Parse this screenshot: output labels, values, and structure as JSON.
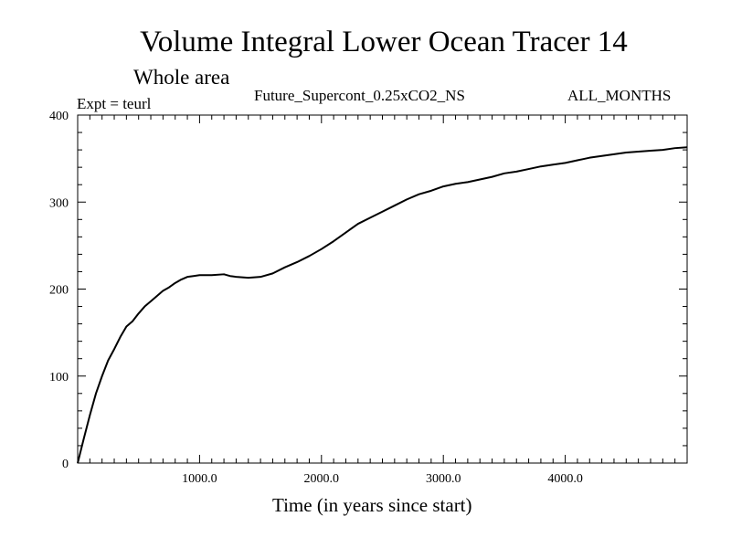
{
  "chart_data": {
    "type": "line",
    "title": "Volume Integral Lower Ocean Tracer 14",
    "subtitle": "Whole area",
    "experiment_label": "Expt = teurl",
    "run_label": "Future_Supercont_0.25xCO2_NS",
    "period_label": "ALL_MONTHS",
    "xlabel": "Time (in years since start)",
    "ylabel": "",
    "xlim": [
      0,
      5000
    ],
    "ylim": [
      0,
      400
    ],
    "x_ticks": [
      1000,
      2000,
      3000,
      4000
    ],
    "x_tick_labels": [
      "1000.0",
      "2000.0",
      "3000.0",
      "4000.0"
    ],
    "y_ticks": [
      0,
      100,
      200,
      300,
      400
    ],
    "y_tick_labels": [
      "0",
      "100",
      "200",
      "300",
      "400"
    ],
    "grid": false,
    "line_color": "#000000",
    "series": [
      {
        "x": [
          0,
          50,
          100,
          150,
          200,
          250,
          300,
          350,
          400,
          450,
          500,
          550,
          600,
          650,
          700,
          750,
          800,
          850,
          900,
          950,
          1000,
          1100,
          1200,
          1250,
          1300,
          1400,
          1500,
          1600,
          1700,
          1800,
          1900,
          2000,
          2100,
          2200,
          2300,
          2400,
          2500,
          2600,
          2700,
          2800,
          2900,
          3000,
          3100,
          3200,
          3300,
          3400,
          3500,
          3600,
          3700,
          3800,
          3900,
          4000,
          4100,
          4200,
          4300,
          4400,
          4500,
          4600,
          4700,
          4800,
          4900,
          5000
        ],
        "y": [
          0,
          28,
          55,
          80,
          100,
          118,
          131,
          145,
          157,
          163,
          172,
          180,
          186,
          192,
          198,
          202,
          207,
          211,
          214,
          215,
          216,
          216,
          217,
          215,
          214,
          213,
          214,
          218,
          225,
          231,
          238,
          246,
          255,
          265,
          275,
          282,
          289,
          296,
          303,
          309,
          313,
          318,
          321,
          323,
          326,
          329,
          333,
          335,
          338,
          341,
          343,
          345,
          348,
          351,
          353,
          355,
          357,
          358,
          359,
          360,
          362,
          363
        ]
      }
    ]
  }
}
